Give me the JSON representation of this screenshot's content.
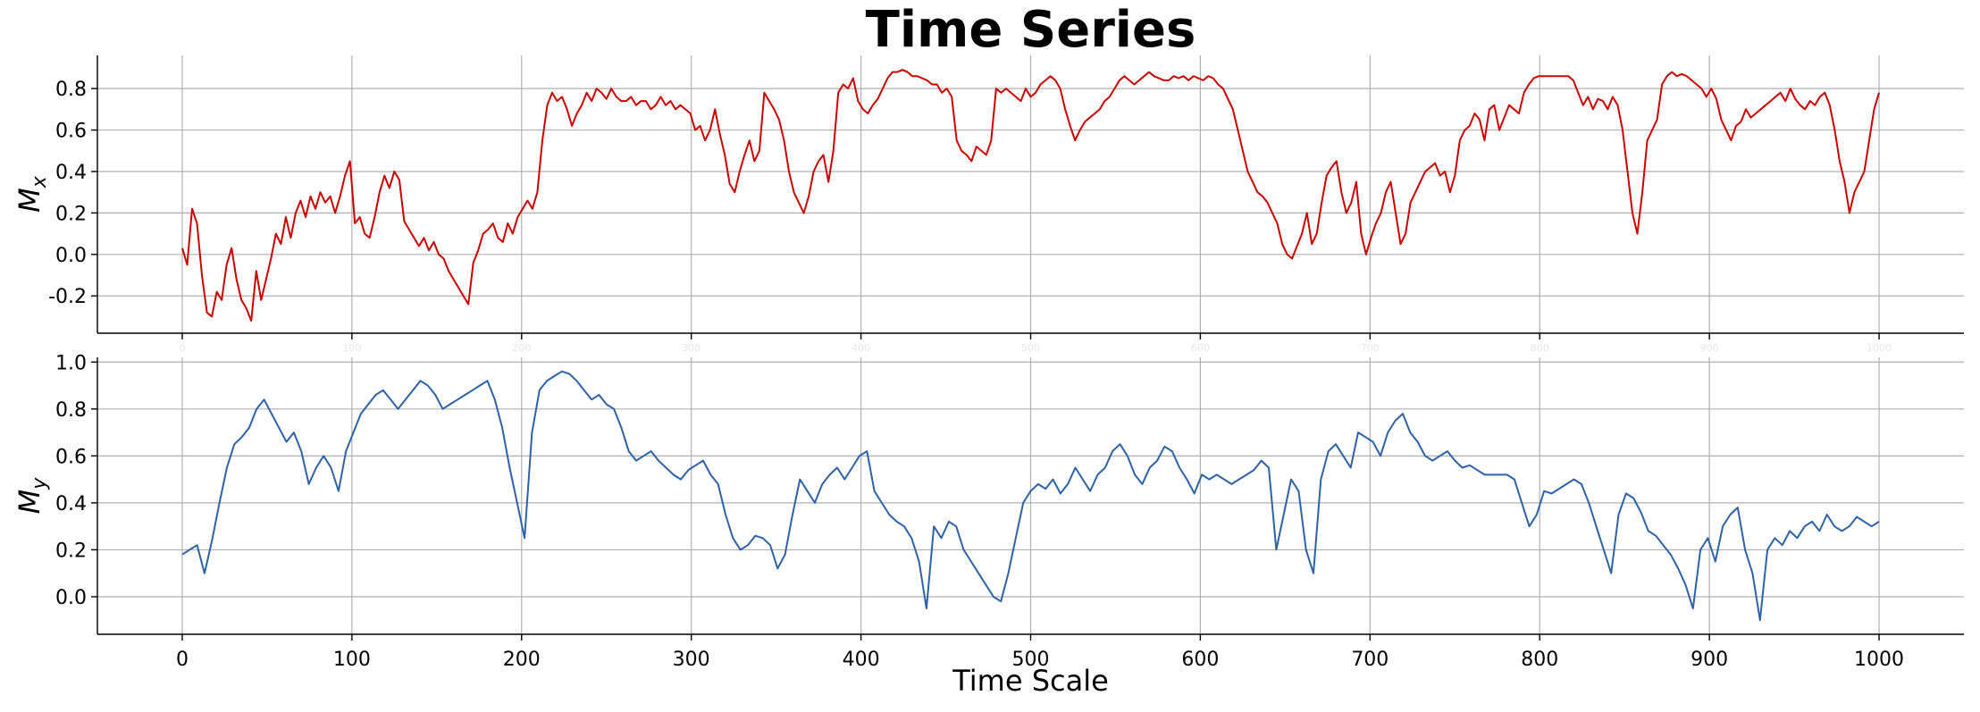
{
  "chart_data": {
    "title": "Time Series",
    "xlabel": "Time Scale",
    "xlim": [
      -50,
      1050
    ],
    "xticks": [
      0,
      100,
      200,
      300,
      400,
      500,
      600,
      700,
      800,
      900,
      1000
    ],
    "x_step": 5,
    "panels": [
      {
        "type": "line",
        "ylabel": "M",
        "ylabel_sub": "x",
        "color": "#cc0000",
        "ylim": [
          -0.38,
          0.96
        ],
        "yticks": [
          -0.2,
          0.0,
          0.2,
          0.4,
          0.6,
          0.8
        ],
        "ytick_labels": [
          "-0.2",
          "0.0",
          "0.2",
          "0.4",
          "0.6",
          "0.8"
        ],
        "faint_xtick_labels": true,
        "values": [
          0.03,
          -0.05,
          0.22,
          0.15,
          -0.1,
          -0.28,
          -0.3,
          -0.18,
          -0.22,
          -0.05,
          0.03,
          -0.12,
          -0.22,
          -0.26,
          -0.32,
          -0.08,
          -0.22,
          -0.12,
          -0.02,
          0.1,
          0.05,
          0.18,
          0.08,
          0.2,
          0.26,
          0.18,
          0.28,
          0.22,
          0.3,
          0.25,
          0.28,
          0.2,
          0.28,
          0.38,
          0.45,
          0.15,
          0.18,
          0.1,
          0.08,
          0.18,
          0.3,
          0.38,
          0.32,
          0.4,
          0.36,
          0.16,
          0.12,
          0.08,
          0.04,
          0.08,
          0.02,
          0.06,
          0.0,
          -0.02,
          -0.08,
          -0.12,
          -0.16,
          -0.2,
          -0.24,
          -0.04,
          0.02,
          0.1,
          0.12,
          0.15,
          0.08,
          0.06,
          0.15,
          0.1,
          0.18,
          0.22,
          0.26,
          0.22,
          0.3,
          0.55,
          0.72,
          0.78,
          0.74,
          0.76,
          0.7,
          0.62,
          0.68,
          0.72,
          0.78,
          0.74,
          0.8,
          0.78,
          0.75,
          0.8,
          0.76,
          0.74,
          0.74,
          0.76,
          0.72,
          0.74,
          0.74,
          0.7,
          0.72,
          0.76,
          0.72,
          0.74,
          0.7,
          0.72,
          0.7,
          0.68,
          0.6,
          0.62,
          0.55,
          0.6,
          0.7,
          0.58,
          0.48,
          0.34,
          0.3,
          0.4,
          0.48,
          0.55,
          0.45,
          0.5,
          0.78,
          0.74,
          0.7,
          0.65,
          0.55,
          0.4,
          0.3,
          0.25,
          0.2,
          0.28,
          0.4,
          0.45,
          0.48,
          0.35,
          0.5,
          0.78,
          0.82,
          0.8,
          0.85,
          0.74,
          0.7,
          0.68,
          0.72,
          0.75,
          0.8,
          0.85,
          0.88,
          0.88,
          0.89,
          0.88,
          0.86,
          0.86,
          0.85,
          0.84,
          0.82,
          0.82,
          0.78,
          0.8,
          0.76,
          0.55,
          0.5,
          0.48,
          0.45,
          0.52,
          0.5,
          0.48,
          0.55,
          0.8,
          0.78,
          0.8,
          0.78,
          0.76,
          0.74,
          0.8,
          0.76,
          0.78,
          0.82,
          0.84,
          0.86,
          0.84,
          0.8,
          0.7,
          0.62,
          0.55,
          0.6,
          0.64,
          0.66,
          0.68,
          0.7,
          0.74,
          0.76,
          0.8,
          0.84,
          0.86,
          0.84,
          0.82,
          0.84,
          0.86,
          0.88,
          0.86,
          0.85,
          0.84,
          0.84,
          0.86,
          0.85,
          0.86,
          0.84,
          0.86,
          0.85,
          0.84,
          0.86,
          0.85,
          0.82,
          0.8,
          0.75,
          0.7,
          0.6,
          0.5,
          0.4,
          0.35,
          0.3,
          0.28,
          0.25,
          0.2,
          0.15,
          0.05,
          0.0,
          -0.02,
          0.04,
          0.1,
          0.2,
          0.05,
          0.1,
          0.25,
          0.38,
          0.42,
          0.45,
          0.3,
          0.2,
          0.25,
          0.35,
          0.1,
          0.0,
          0.08,
          0.15,
          0.2,
          0.3,
          0.35,
          0.2,
          0.05,
          0.1,
          0.25,
          0.3,
          0.35,
          0.4,
          0.42,
          0.44,
          0.38,
          0.4,
          0.3,
          0.38,
          0.55,
          0.6,
          0.62,
          0.68,
          0.65,
          0.55,
          0.7,
          0.72,
          0.6,
          0.66,
          0.72,
          0.7,
          0.68,
          0.78,
          0.82,
          0.85,
          0.86,
          0.86,
          0.86,
          0.86,
          0.86,
          0.86,
          0.86,
          0.84,
          0.78,
          0.72,
          0.76,
          0.7,
          0.75,
          0.74,
          0.7,
          0.76,
          0.72,
          0.6,
          0.4,
          0.2,
          0.1,
          0.3,
          0.55,
          0.6,
          0.65,
          0.82,
          0.86,
          0.88,
          0.86,
          0.87,
          0.86,
          0.84,
          0.82,
          0.8,
          0.76,
          0.8,
          0.75,
          0.65,
          0.6,
          0.55,
          0.62,
          0.64,
          0.7,
          0.66,
          0.68,
          0.7,
          0.72,
          0.74,
          0.76,
          0.78,
          0.74,
          0.8,
          0.75,
          0.72,
          0.7,
          0.74,
          0.72,
          0.76,
          0.78,
          0.72,
          0.6,
          0.45,
          0.35,
          0.2,
          0.3,
          0.35,
          0.4,
          0.55,
          0.7,
          0.78
        ]
      },
      {
        "type": "line",
        "ylabel": "M",
        "ylabel_sub": "y",
        "color": "#2e62a8",
        "ylim": [
          -0.16,
          1.02
        ],
        "yticks": [
          0.0,
          0.2,
          0.4,
          0.6,
          0.8,
          1.0
        ],
        "ytick_labels": [
          "0.0",
          "0.2",
          "0.4",
          "0.6",
          "0.8",
          "1.0"
        ],
        "faint_xtick_labels": false,
        "values": [
          0.18,
          0.2,
          0.22,
          0.1,
          0.24,
          0.4,
          0.55,
          0.65,
          0.68,
          0.72,
          0.8,
          0.84,
          0.78,
          0.72,
          0.66,
          0.7,
          0.62,
          0.48,
          0.55,
          0.6,
          0.55,
          0.45,
          0.62,
          0.7,
          0.78,
          0.82,
          0.86,
          0.88,
          0.84,
          0.8,
          0.84,
          0.88,
          0.92,
          0.9,
          0.86,
          0.8,
          0.82,
          0.84,
          0.86,
          0.88,
          0.9,
          0.92,
          0.84,
          0.72,
          0.55,
          0.4,
          0.25,
          0.7,
          0.88,
          0.92,
          0.94,
          0.96,
          0.95,
          0.92,
          0.88,
          0.84,
          0.86,
          0.82,
          0.8,
          0.72,
          0.62,
          0.58,
          0.6,
          0.62,
          0.58,
          0.55,
          0.52,
          0.5,
          0.54,
          0.56,
          0.58,
          0.52,
          0.48,
          0.35,
          0.25,
          0.2,
          0.22,
          0.26,
          0.25,
          0.22,
          0.12,
          0.18,
          0.35,
          0.5,
          0.45,
          0.4,
          0.48,
          0.52,
          0.55,
          0.5,
          0.55,
          0.6,
          0.62,
          0.45,
          0.4,
          0.35,
          0.32,
          0.3,
          0.25,
          0.15,
          -0.05,
          0.3,
          0.25,
          0.32,
          0.3,
          0.2,
          0.15,
          0.1,
          0.05,
          0.0,
          -0.02,
          0.1,
          0.25,
          0.4,
          0.45,
          0.48,
          0.46,
          0.5,
          0.44,
          0.48,
          0.55,
          0.5,
          0.45,
          0.52,
          0.55,
          0.62,
          0.65,
          0.6,
          0.52,
          0.48,
          0.55,
          0.58,
          0.64,
          0.62,
          0.55,
          0.5,
          0.44,
          0.52,
          0.5,
          0.52,
          0.5,
          0.48,
          0.5,
          0.52,
          0.54,
          0.58,
          0.55,
          0.2,
          0.35,
          0.5,
          0.45,
          0.2,
          0.1,
          0.5,
          0.62,
          0.65,
          0.6,
          0.55,
          0.7,
          0.68,
          0.66,
          0.6,
          0.7,
          0.75,
          0.78,
          0.7,
          0.66,
          0.6,
          0.58,
          0.6,
          0.62,
          0.58,
          0.55,
          0.56,
          0.54,
          0.52,
          0.52,
          0.52,
          0.52,
          0.5,
          0.4,
          0.3,
          0.35,
          0.45,
          0.44,
          0.46,
          0.48,
          0.5,
          0.48,
          0.4,
          0.3,
          0.2,
          0.1,
          0.35,
          0.44,
          0.42,
          0.36,
          0.28,
          0.26,
          0.22,
          0.18,
          0.12,
          0.05,
          -0.05,
          0.2,
          0.25,
          0.15,
          0.3,
          0.35,
          0.38,
          0.2,
          0.1,
          -0.1,
          0.2,
          0.25,
          0.22,
          0.28,
          0.25,
          0.3,
          0.32,
          0.28,
          0.35,
          0.3,
          0.28,
          0.3,
          0.34,
          0.32,
          0.3,
          0.32
        ]
      }
    ]
  }
}
